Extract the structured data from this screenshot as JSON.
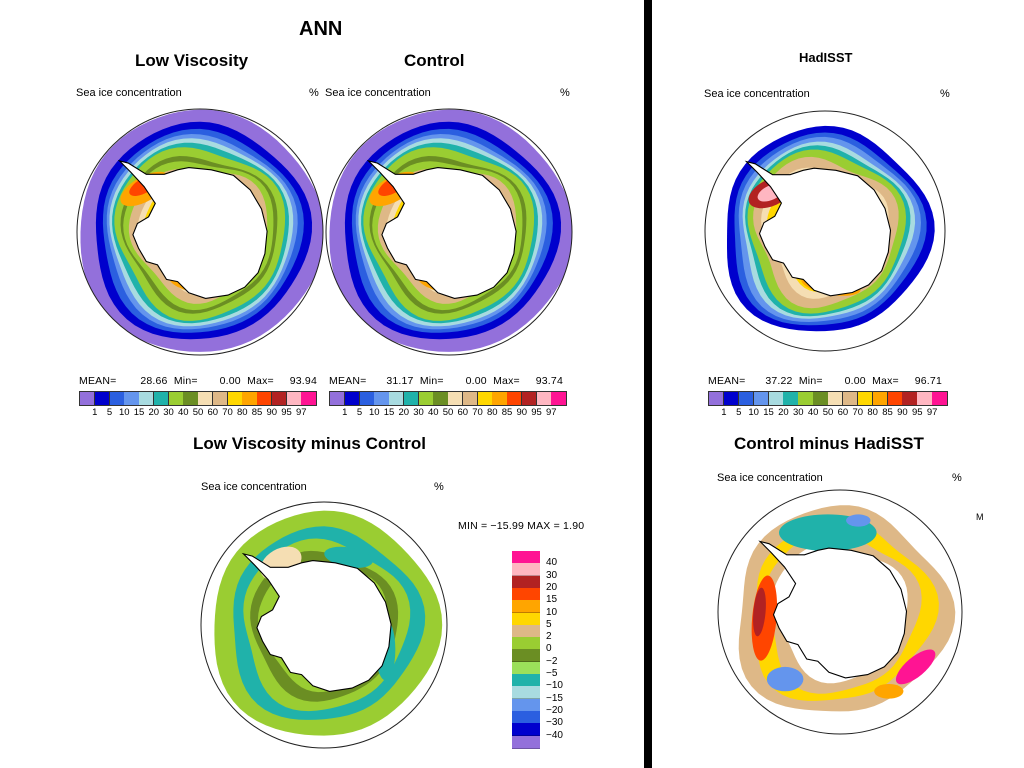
{
  "header": {
    "season": "ANN"
  },
  "titles": {
    "low_viscosity": "Low Viscosity",
    "control": "Control",
    "hadisst": "HadISST",
    "diff_lv_ctrl": "Low Viscosity minus Control",
    "diff_ctrl_had": "Control minus HadiSST"
  },
  "panels": {
    "var_label": "Sea ice concentration",
    "unit": "%",
    "low_viscosity": {
      "mean": "28.66",
      "min": "0.00",
      "max": "93.94"
    },
    "control": {
      "mean": "31.17",
      "min": "0.00",
      "max": "93.74"
    },
    "hadisst": {
      "mean": "37.22",
      "min": "0.00",
      "max": "96.71"
    },
    "stat_labels": {
      "mean": "MEAN=",
      "min": "Min=",
      "max": "Max="
    }
  },
  "concentration_scale": {
    "ticks": [
      "1",
      "5",
      "10",
      "15",
      "20",
      "30",
      "40",
      "50",
      "60",
      "70",
      "80",
      "85",
      "90",
      "95",
      "97"
    ],
    "colors": [
      "#9370db",
      "#0000cd",
      "#2b5fe0",
      "#6495ed",
      "#a8dbe0",
      "#20b2aa",
      "#9acd32",
      "#6b8e23",
      "#f5deb3",
      "#deb887",
      "#ffd700",
      "#ffa500",
      "#ff4500",
      "#b22222",
      "#ffb6c1",
      "#ff1493"
    ]
  },
  "diff_stats": {
    "text": "MIN = −15.99  MAX =    1.90"
  },
  "diff_scale": {
    "labels": [
      "40",
      "30",
      "20",
      "15",
      "10",
      "5",
      "2",
      "0",
      "−2",
      "−5",
      "−10",
      "−15",
      "−20",
      "−30",
      "−40"
    ],
    "colors": [
      "#ff1493",
      "#ffb6c1",
      "#b22222",
      "#ff4500",
      "#ffa500",
      "#ffd700",
      "#deb887",
      "#9acd32",
      "#6b8e23",
      "#9be05a",
      "#20b2aa",
      "#a8dbe0",
      "#6495ed",
      "#2b5fe0",
      "#0000cd",
      "#9370db"
    ]
  },
  "cut_text": {
    "partial": "M"
  }
}
